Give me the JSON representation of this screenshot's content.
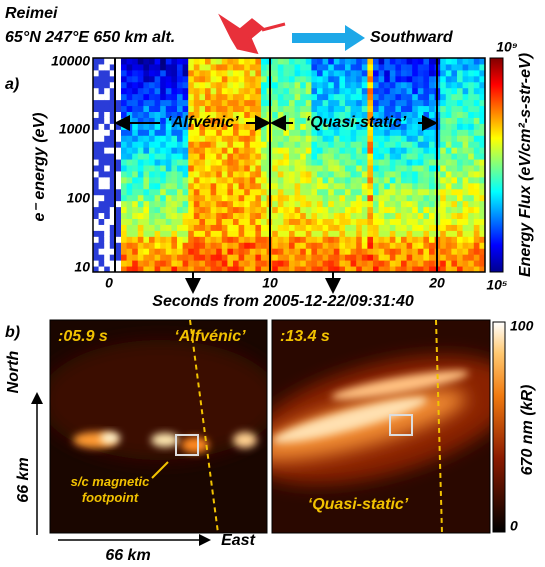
{
  "header": {
    "title": "Reimei",
    "location": "65°N 247°E 650 km alt.",
    "direction": "Southward"
  },
  "panel_a": {
    "label": "a)",
    "y_label": "e⁻ energy (eV)",
    "y_ticks": [
      "10000",
      "1000",
      "100",
      "10"
    ],
    "x_ticks": [
      "0",
      "10",
      "20"
    ],
    "x_label": "Seconds from 2005-12-22/09:31:40",
    "region_1": "‘Alfvénic’",
    "region_2": "‘Quasi-static’",
    "colorbar_max": "10⁹",
    "colorbar_min": "10⁵",
    "colorbar_label": "Energy Flux (eV/cm²-s-str-eV)"
  },
  "panel_b": {
    "label": "b)",
    "left_time": ":05.9 s",
    "left_region": "‘Alfvénic’",
    "right_time": ":13.4 s",
    "right_region": "‘Quasi-static’",
    "north": "North",
    "y_scale": "66 km",
    "footpoint": "s/c magnetic footpoint",
    "x_scale": "66 km",
    "east": "East",
    "colorbar_max": "100",
    "colorbar_min": "0",
    "colorbar_label": "670 nm   (kR)"
  }
}
